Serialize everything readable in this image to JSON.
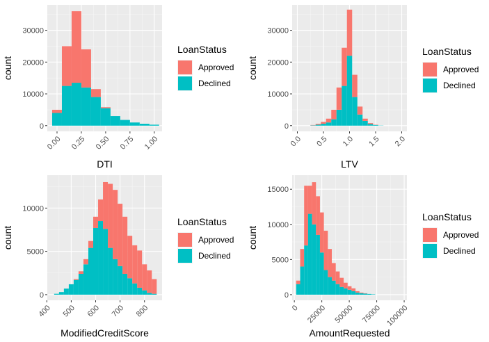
{
  "chart_data": [
    {
      "type": "bar",
      "stacked": true,
      "histogram": true,
      "xlabel": "DTI",
      "ylabel": "count",
      "xlim": [
        -0.1,
        1.08
      ],
      "ylim": [
        -1800,
        38000
      ],
      "x_ticks": [
        0.0,
        0.25,
        0.5,
        0.75,
        1.0
      ],
      "x_tick_labels": [
        "0.00",
        "0.25",
        "0.50",
        "0.75",
        "1.00"
      ],
      "x_tick_rotation": 45,
      "y_ticks": [
        0,
        10000,
        20000,
        30000
      ],
      "y_tick_labels": [
        "0",
        "10000",
        "20000",
        "30000"
      ],
      "bin_width": 0.1,
      "bin_centers": [
        0.0,
        0.1,
        0.2,
        0.3,
        0.4,
        0.5,
        0.6,
        0.7,
        0.8,
        0.9,
        1.0
      ],
      "series": [
        {
          "name": "Declined",
          "values": [
            4000,
            12500,
            13500,
            12000,
            9000,
            5500,
            3000,
            1800,
            1000,
            600,
            300
          ]
        },
        {
          "name": "Approved",
          "values": [
            1000,
            12500,
            22500,
            12000,
            2500,
            300,
            0,
            0,
            0,
            0,
            0
          ]
        }
      ],
      "legend": {
        "title": "LoanStatus",
        "entries": [
          "Approved",
          "Declined"
        ]
      },
      "grid": true
    },
    {
      "type": "bar",
      "stacked": true,
      "histogram": true,
      "xlabel": "LTV",
      "ylabel": "count",
      "xlim": [
        -0.1,
        2.1
      ],
      "ylim": [
        -1800,
        38000
      ],
      "x_ticks": [
        0.0,
        0.5,
        1.0,
        1.5,
        2.0
      ],
      "x_tick_labels": [
        "0.0",
        "0.5",
        "1.0",
        "1.5",
        "2.0"
      ],
      "x_tick_rotation": 45,
      "y_ticks": [
        0,
        10000,
        20000,
        30000
      ],
      "y_tick_labels": [
        "0",
        "10000",
        "20000",
        "30000"
      ],
      "bin_width": 0.1,
      "bin_centers": [
        0.3,
        0.4,
        0.5,
        0.6,
        0.7,
        0.8,
        0.9,
        1.0,
        1.1,
        1.2,
        1.3,
        1.4,
        1.5,
        1.6
      ],
      "series": [
        {
          "name": "Declined",
          "values": [
            100,
            300,
            600,
            1000,
            2000,
            5000,
            12500,
            22000,
            9000,
            3500,
            1500,
            500,
            200,
            50
          ]
        },
        {
          "name": "Approved",
          "values": [
            100,
            300,
            600,
            1200,
            3000,
            7000,
            12000,
            14500,
            7000,
            2500,
            700,
            300,
            100,
            0
          ]
        }
      ],
      "legend": {
        "title": "LoanStatus",
        "entries": [
          "Approved",
          "Declined"
        ]
      },
      "grid": true
    },
    {
      "type": "bar",
      "stacked": true,
      "histogram": true,
      "xlabel": "ModifiedCreditScore",
      "ylabel": "count",
      "xlim": [
        402,
        872
      ],
      "ylim": [
        -650,
        13800
      ],
      "x_ticks": [
        400,
        500,
        600,
        700,
        800
      ],
      "x_tick_labels": [
        "400",
        "500",
        "600",
        "700",
        "800"
      ],
      "x_tick_rotation": 45,
      "y_ticks": [
        0,
        5000,
        10000
      ],
      "y_tick_labels": [
        "0",
        "5000",
        "10000"
      ],
      "bin_width": 20,
      "bin_centers": [
        440,
        460,
        480,
        500,
        520,
        540,
        560,
        580,
        600,
        620,
        640,
        660,
        680,
        700,
        720,
        740,
        760,
        780,
        800,
        820,
        840
      ],
      "series": [
        {
          "name": "Declined",
          "values": [
            100,
            300,
            700,
            1200,
            1700,
            2400,
            3500,
            5400,
            7700,
            8500,
            7600,
            5400,
            4100,
            3300,
            2400,
            1900,
            1300,
            800,
            500,
            200,
            100
          ]
        },
        {
          "name": "Approved",
          "values": [
            0,
            0,
            0,
            0,
            100,
            300,
            600,
            800,
            1300,
            2500,
            5400,
            7400,
            8000,
            7200,
            6600,
            4900,
            4400,
            4300,
            3000,
            2600,
            1700
          ]
        }
      ],
      "legend": {
        "title": "LoanStatus",
        "entries": [
          "Approved",
          "Declined"
        ]
      },
      "grid": true
    },
    {
      "type": "bar",
      "stacked": true,
      "histogram": true,
      "xlabel": "AmountRequested",
      "ylabel": "count",
      "xlim": [
        -2000,
        102500
      ],
      "ylim": [
        -800,
        17000
      ],
      "x_ticks": [
        0,
        25000,
        50000,
        75000,
        100000
      ],
      "x_tick_labels": [
        "0",
        "25000",
        "50000",
        "75000",
        "100000"
      ],
      "x_tick_rotation": 45,
      "y_ticks": [
        0,
        5000,
        10000,
        15000
      ],
      "y_tick_labels": [
        "0",
        "5000",
        "10000",
        "15000"
      ],
      "bin_width": 3600,
      "bin_centers": [
        3500,
        7100,
        10700,
        14300,
        17900,
        21500,
        25100,
        28700,
        32300,
        35900,
        39500,
        43100,
        46700,
        50300,
        53900,
        57500,
        61100,
        64700,
        68300,
        71900
      ],
      "series": [
        {
          "name": "Declined",
          "values": [
            1500,
            4000,
            7000,
            11500,
            10000,
            8500,
            6000,
            3500,
            2500,
            2000,
            1500,
            1100,
            900,
            700,
            500,
            300,
            200,
            150,
            100,
            50
          ]
        },
        {
          "name": "Approved",
          "values": [
            500,
            2500,
            8500,
            4000,
            6000,
            5500,
            5700,
            5600,
            4000,
            2500,
            1800,
            1300,
            800,
            500,
            400,
            200,
            100,
            50,
            0,
            0
          ]
        }
      ],
      "legend": {
        "title": "LoanStatus",
        "entries": [
          "Approved",
          "Declined"
        ]
      },
      "grid": true
    }
  ],
  "colors": {
    "Approved": "#f8766d",
    "Declined": "#00bfc4",
    "panel_background": "#ebebeb",
    "grid_major": "#ffffff",
    "grid_minor": "#f5f5f5",
    "tick_text": "#4d4d4d"
  }
}
